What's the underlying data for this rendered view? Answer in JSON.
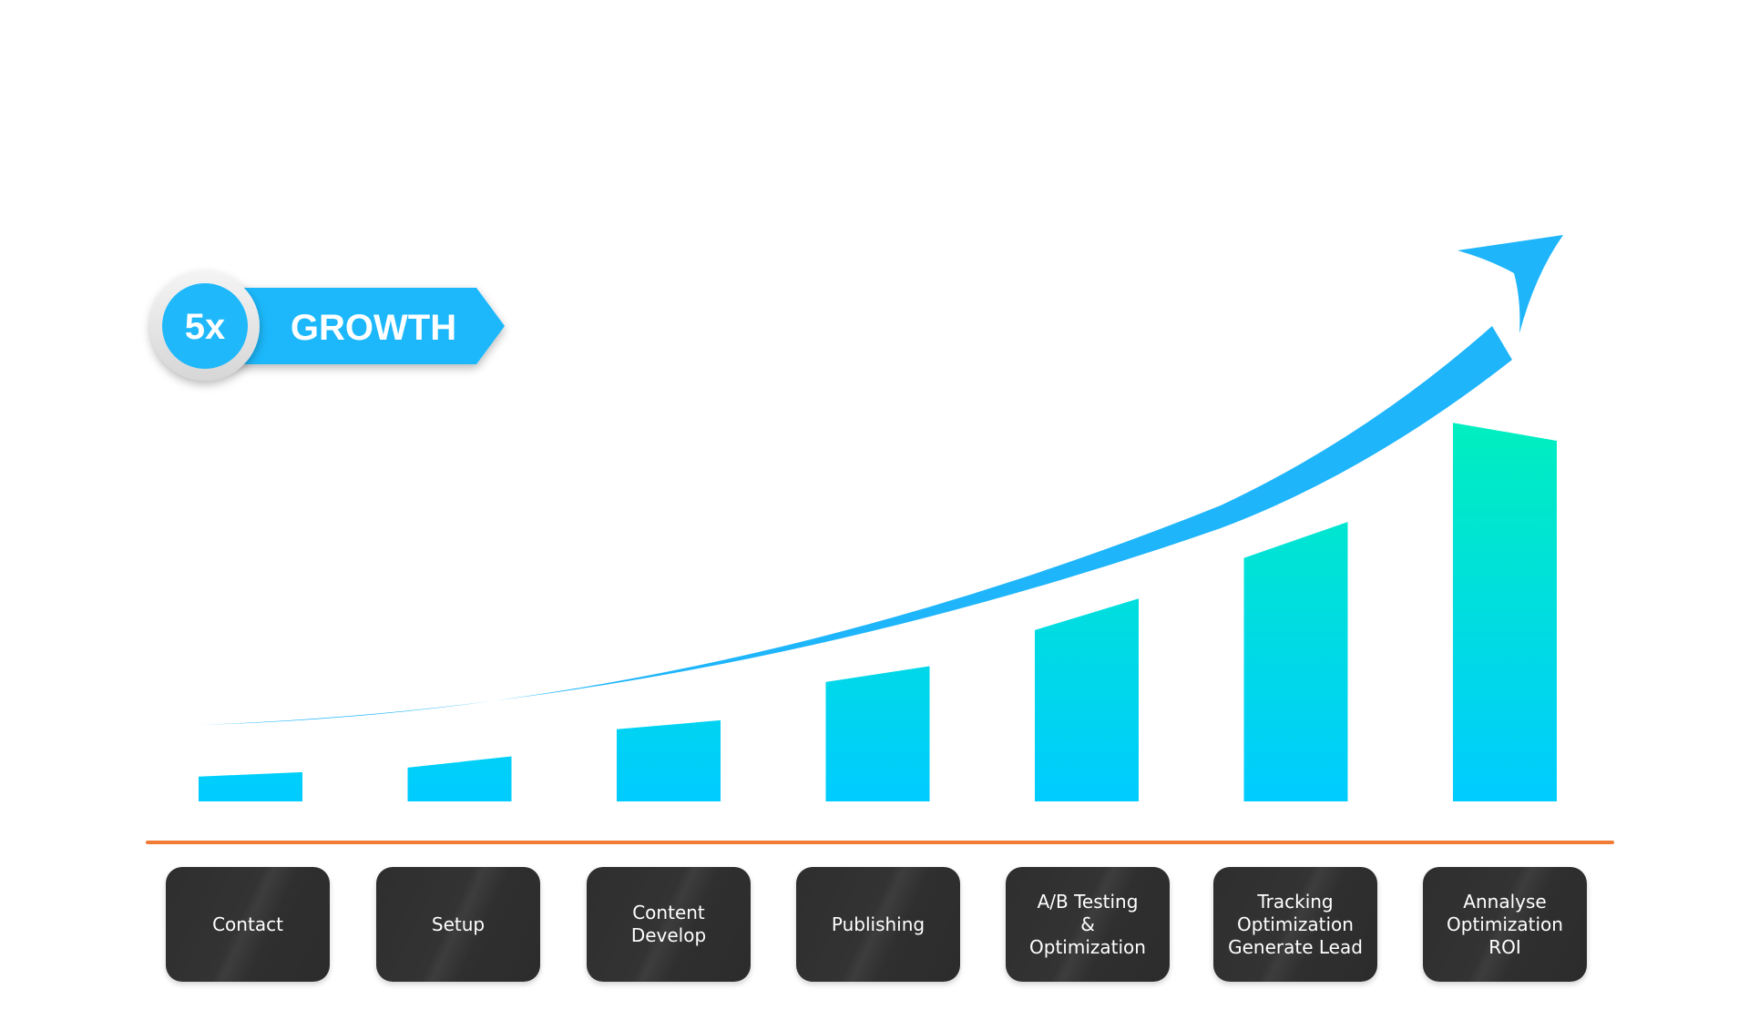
{
  "badge": {
    "multiplier": "5x",
    "label": "GROWTH"
  },
  "colors": {
    "bar_top": "#00f5b3",
    "bar_bottom": "#00ccff",
    "arrow": "#1fb5fb",
    "badge": "#1fb8fb",
    "baseline": "#ef7b34",
    "step_box": "#333333"
  },
  "chart_data": {
    "type": "bar",
    "title": "5x GROWTH",
    "xlabel": "",
    "ylabel": "",
    "grid": false,
    "trend_arrow": true,
    "ylim": [
      0,
      100
    ],
    "categories": [
      "Contact",
      "Setup",
      "Content\nDevelop",
      "Publishing",
      "A/B Testing\n&\nOptimization",
      "Tracking\nOptimization\nGenerate Lead",
      "Annalyse\nOptimization\nROI"
    ],
    "values_start": [
      5.5,
      7.5,
      16,
      26.5,
      38,
      54,
      84
    ],
    "values": [
      6.5,
      10,
      18,
      30,
      45,
      62,
      80
    ]
  }
}
